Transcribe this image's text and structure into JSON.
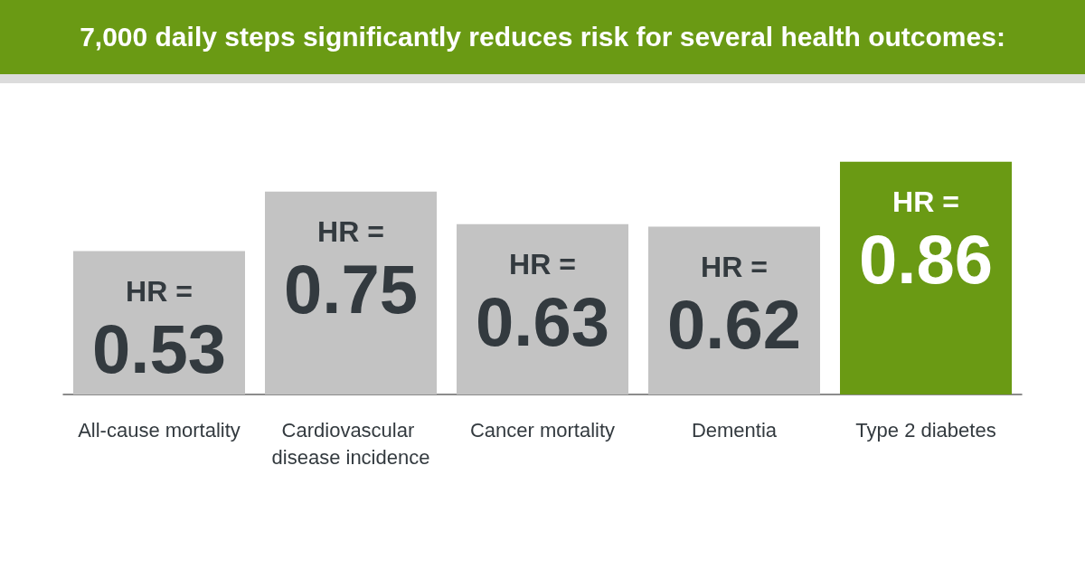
{
  "chart_data": {
    "type": "bar",
    "title": "7,000 daily steps significantly reduces risk for several health outcomes:",
    "categories": [
      "All-cause mortality",
      "Cardiovascular disease incidence",
      "Cancer mortality",
      "Dementia",
      "Type 2 diabetes"
    ],
    "values": [
      0.53,
      0.75,
      0.63,
      0.62,
      0.86
    ],
    "colors": [
      "#c3c3c3",
      "#c3c3c3",
      "#c3c3c3",
      "#c3c3c3",
      "#6a9a14"
    ],
    "value_labels": [
      "HR =\n0.53",
      "HR =\n0.75",
      "HR =\n0.63",
      "HR =\n0.62",
      "HR =\n0.86"
    ]
  }
}
